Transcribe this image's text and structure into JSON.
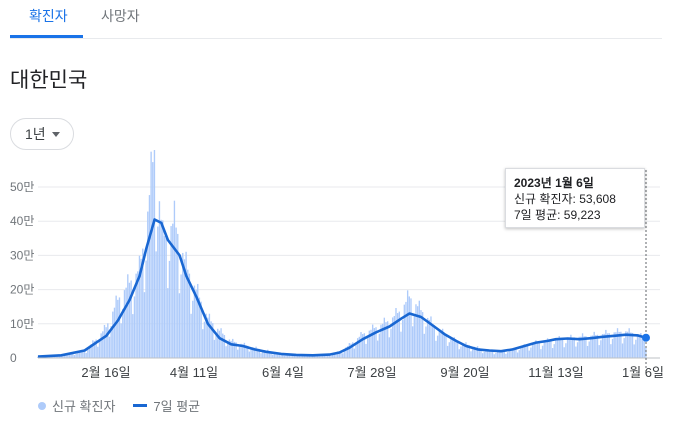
{
  "tabs": [
    {
      "label": "확진자",
      "active": true
    },
    {
      "label": "사망자",
      "active": false
    }
  ],
  "region": "대한민국",
  "range_selector": {
    "label": "1년"
  },
  "tooltip": {
    "date": "2023년 1월 6일",
    "new_cases": "신규 확진자: 53,608",
    "avg": "7일 평균: 59,223"
  },
  "legend": {
    "daily": "신규 확진자",
    "avg": "7일 평균"
  },
  "colors": {
    "bar": "#aecbfa",
    "line": "#1967d2",
    "accent": "#1a73e8",
    "grid": "#e8eaed"
  },
  "chart_data": {
    "type": "bar",
    "series": [
      {
        "name": "신규 확진자",
        "kind": "bar"
      },
      {
        "name": "7일 평균",
        "kind": "line"
      }
    ],
    "ylim": [
      0,
      500000
    ],
    "y_ticks": [
      {
        "v": 0,
        "label": "0"
      },
      {
        "v": 100000,
        "label": "10만"
      },
      {
        "v": 200000,
        "label": "20만"
      },
      {
        "v": 300000,
        "label": "30만"
      },
      {
        "v": 400000,
        "label": "40만"
      },
      {
        "v": 500000,
        "label": "50만"
      }
    ],
    "x_ticks": [
      "2월 16일",
      "4월 11일",
      "6월 4일",
      "7월 28일",
      "9월 20일",
      "11월 13일",
      "1월 6일"
    ],
    "x_start": "2022-01-06",
    "x_end": "2023-01-06",
    "daily_anchors": [
      [
        "2022-01-06",
        4000
      ],
      [
        "2022-01-20",
        6600
      ],
      [
        "2022-01-27",
        14500
      ],
      [
        "2022-02-03",
        22900
      ],
      [
        "2022-02-10",
        54000
      ],
      [
        "2022-02-16",
        90000
      ],
      [
        "2022-02-23",
        170000
      ],
      [
        "2022-03-02",
        220000
      ],
      [
        "2022-03-08",
        260000
      ],
      [
        "2022-03-12",
        380000
      ],
      [
        "2022-03-17",
        621000
      ],
      [
        "2022-03-22",
        350000
      ],
      [
        "2022-03-29",
        400000
      ],
      [
        "2022-04-05",
        270000
      ],
      [
        "2022-04-11",
        200000
      ],
      [
        "2022-04-18",
        118000
      ],
      [
        "2022-04-25",
        80000
      ],
      [
        "2022-05-02",
        50000
      ],
      [
        "2022-05-09",
        40000
      ],
      [
        "2022-05-16",
        30000
      ],
      [
        "2022-05-23",
        22000
      ],
      [
        "2022-06-01",
        13000
      ],
      [
        "2022-06-10",
        10000
      ],
      [
        "2022-06-20",
        8000
      ],
      [
        "2022-06-30",
        10000
      ],
      [
        "2022-07-06",
        18000
      ],
      [
        "2022-07-12",
        38000
      ],
      [
        "2022-07-20",
        70000
      ],
      [
        "2022-07-28",
        90000
      ],
      [
        "2022-08-05",
        110000
      ],
      [
        "2022-08-12",
        140000
      ],
      [
        "2022-08-17",
        180000
      ],
      [
        "2022-08-24",
        140000
      ],
      [
        "2022-08-31",
        100000
      ],
      [
        "2022-09-07",
        70000
      ],
      [
        "2022-09-14",
        50000
      ],
      [
        "2022-09-20",
        40000
      ],
      [
        "2022-09-27",
        30000
      ],
      [
        "2022-10-04",
        20000
      ],
      [
        "2022-10-11",
        20000
      ],
      [
        "2022-10-18",
        25000
      ],
      [
        "2022-10-25",
        35000
      ],
      [
        "2022-11-01",
        45000
      ],
      [
        "2022-11-08",
        50000
      ],
      [
        "2022-11-13",
        55000
      ],
      [
        "2022-11-20",
        58000
      ],
      [
        "2022-11-27",
        62000
      ],
      [
        "2022-12-04",
        65000
      ],
      [
        "2022-12-11",
        70000
      ],
      [
        "2022-12-18",
        75000
      ],
      [
        "2022-12-25",
        78000
      ],
      [
        "2023-01-01",
        70000
      ],
      [
        "2023-01-06",
        53608
      ]
    ],
    "avg_anchors": [
      [
        "2022-01-06",
        4000
      ],
      [
        "2022-01-20",
        8000
      ],
      [
        "2022-02-03",
        22000
      ],
      [
        "2022-02-10",
        45000
      ],
      [
        "2022-02-16",
        65000
      ],
      [
        "2022-02-23",
        110000
      ],
      [
        "2022-03-02",
        170000
      ],
      [
        "2022-03-08",
        240000
      ],
      [
        "2022-03-12",
        320000
      ],
      [
        "2022-03-17",
        405000
      ],
      [
        "2022-03-21",
        395000
      ],
      [
        "2022-03-25",
        345000
      ],
      [
        "2022-04-01",
        300000
      ],
      [
        "2022-04-05",
        240000
      ],
      [
        "2022-04-11",
        180000
      ],
      [
        "2022-04-18",
        100000
      ],
      [
        "2022-04-25",
        58000
      ],
      [
        "2022-05-02",
        40000
      ],
      [
        "2022-05-09",
        35000
      ],
      [
        "2022-05-16",
        25000
      ],
      [
        "2022-05-23",
        18000
      ],
      [
        "2022-06-01",
        12000
      ],
      [
        "2022-06-10",
        9000
      ],
      [
        "2022-06-20",
        8000
      ],
      [
        "2022-06-30",
        10000
      ],
      [
        "2022-07-06",
        16000
      ],
      [
        "2022-07-12",
        30000
      ],
      [
        "2022-07-20",
        55000
      ],
      [
        "2022-07-28",
        75000
      ],
      [
        "2022-08-05",
        92000
      ],
      [
        "2022-08-12",
        115000
      ],
      [
        "2022-08-17",
        130000
      ],
      [
        "2022-08-24",
        120000
      ],
      [
        "2022-08-31",
        95000
      ],
      [
        "2022-09-07",
        70000
      ],
      [
        "2022-09-14",
        50000
      ],
      [
        "2022-09-20",
        35000
      ],
      [
        "2022-09-27",
        25000
      ],
      [
        "2022-10-04",
        22000
      ],
      [
        "2022-10-11",
        20000
      ],
      [
        "2022-10-18",
        25000
      ],
      [
        "2022-10-25",
        35000
      ],
      [
        "2022-11-01",
        45000
      ],
      [
        "2022-11-08",
        50000
      ],
      [
        "2022-11-13",
        55000
      ],
      [
        "2022-11-20",
        57000
      ],
      [
        "2022-11-27",
        55000
      ],
      [
        "2022-12-04",
        58000
      ],
      [
        "2022-12-11",
        62000
      ],
      [
        "2022-12-18",
        65000
      ],
      [
        "2022-12-25",
        68000
      ],
      [
        "2023-01-01",
        66000
      ],
      [
        "2023-01-06",
        59223
      ]
    ],
    "grid": true,
    "legend_position": "bottom"
  }
}
